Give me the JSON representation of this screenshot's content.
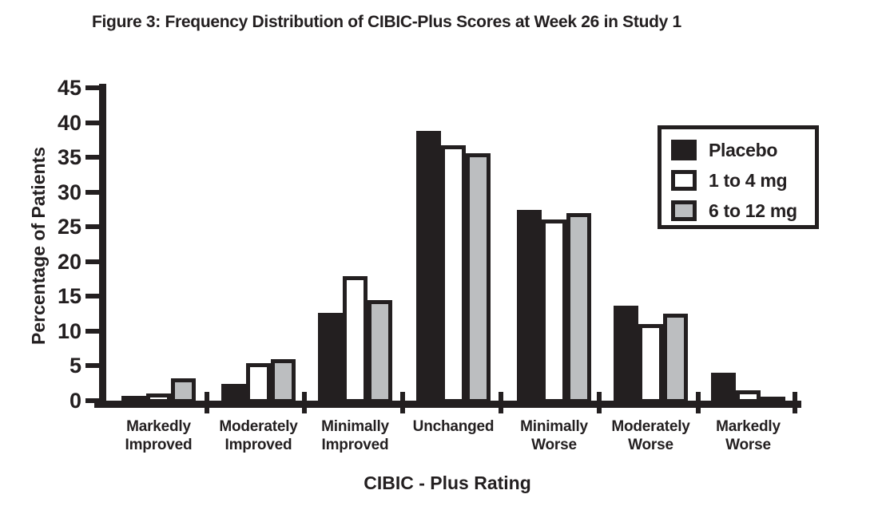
{
  "chart_data": {
    "type": "bar",
    "title": "Figure 3: Frequency Distribution of CIBIC-Plus Scores at Week 26 in Study 1",
    "xlabel": "CIBIC - Plus Rating",
    "ylabel": "Percentage of Patients",
    "ylim": [
      0,
      45
    ],
    "yticks": [
      45,
      40,
      35,
      30,
      25,
      20,
      15,
      10,
      5,
      0
    ],
    "grid": false,
    "legend_position": "upper right",
    "categories": [
      "Markedly Improved",
      "Moderately Improved",
      "Minimally Improved",
      "Unchanged",
      "Minimally Worse",
      "Moderately Worse",
      "Markedly Worse"
    ],
    "category_lines": [
      [
        "Markedly",
        "Improved"
      ],
      [
        "Moderately",
        "Improved"
      ],
      [
        "Minimally",
        "Improved"
      ],
      [
        "Unchanged"
      ],
      [
        "Minimally",
        "Worse"
      ],
      [
        "Moderately",
        "Worse"
      ],
      [
        "Markedly",
        "Worse"
      ]
    ],
    "series": [
      {
        "name": "Placebo",
        "fill": "#231f20",
        "values": [
          1.0,
          2.8,
          13.0,
          39.2,
          27.8,
          14.0,
          4.4
        ]
      },
      {
        "name": "1 to 4 mg",
        "fill": "#ffffff",
        "values": [
          1.4,
          5.7,
          18.2,
          37.1,
          26.4,
          11.4,
          1.8
        ]
      },
      {
        "name": "6 to 12 mg",
        "fill": "#bcbec0",
        "values": [
          3.6,
          6.3,
          14.8,
          35.9,
          27.3,
          12.8,
          0.9
        ]
      }
    ],
    "colors": {
      "axis": "#231f20",
      "background": "#ffffff"
    }
  }
}
